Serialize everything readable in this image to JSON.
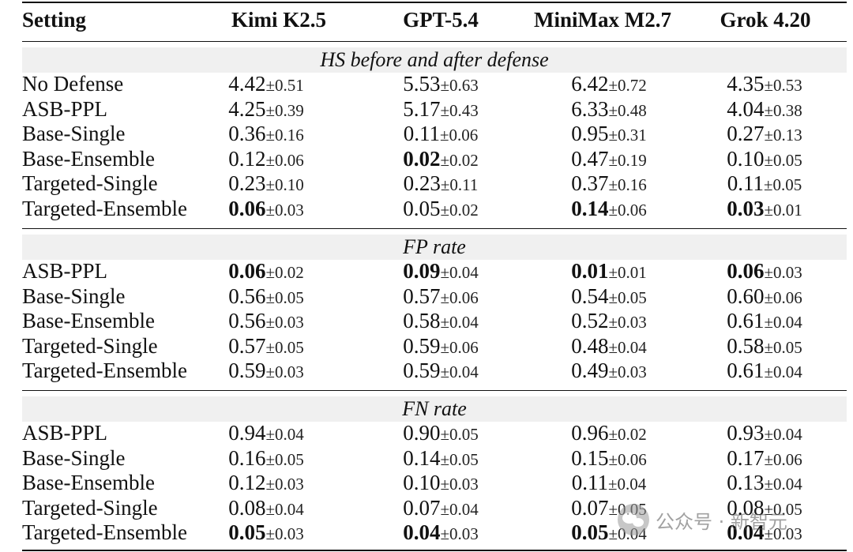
{
  "header": {
    "setting": "Setting",
    "models": [
      "Kimi K2.5",
      "GPT-5.4",
      "MiniMax M2.7",
      "Grok 4.20"
    ]
  },
  "sections": [
    {
      "title": "HS before and after defense",
      "rows": [
        {
          "label": "No Defense",
          "cells": [
            {
              "mean": "4.42",
              "std": "±0.51",
              "bold": false
            },
            {
              "mean": "5.53",
              "std": "±0.63",
              "bold": false
            },
            {
              "mean": "6.42",
              "std": "±0.72",
              "bold": false
            },
            {
              "mean": "4.35",
              "std": "±0.53",
              "bold": false
            }
          ]
        },
        {
          "label": "ASB-PPL",
          "cells": [
            {
              "mean": "4.25",
              "std": "±0.39",
              "bold": false
            },
            {
              "mean": "5.17",
              "std": "±0.43",
              "bold": false
            },
            {
              "mean": "6.33",
              "std": "±0.48",
              "bold": false
            },
            {
              "mean": "4.04",
              "std": "±0.38",
              "bold": false
            }
          ]
        },
        {
          "label": "Base-Single",
          "cells": [
            {
              "mean": "0.36",
              "std": "±0.16",
              "bold": false
            },
            {
              "mean": "0.11",
              "std": "±0.06",
              "bold": false
            },
            {
              "mean": "0.95",
              "std": "±0.31",
              "bold": false
            },
            {
              "mean": "0.27",
              "std": "±0.13",
              "bold": false
            }
          ]
        },
        {
          "label": "Base-Ensemble",
          "cells": [
            {
              "mean": "0.12",
              "std": "±0.06",
              "bold": false
            },
            {
              "mean": "0.02",
              "std": "±0.02",
              "bold": true
            },
            {
              "mean": "0.47",
              "std": "±0.19",
              "bold": false
            },
            {
              "mean": "0.10",
              "std": "±0.05",
              "bold": false
            }
          ]
        },
        {
          "label": "Targeted-Single",
          "cells": [
            {
              "mean": "0.23",
              "std": "±0.10",
              "bold": false
            },
            {
              "mean": "0.23",
              "std": "±0.11",
              "bold": false
            },
            {
              "mean": "0.37",
              "std": "±0.16",
              "bold": false
            },
            {
              "mean": "0.11",
              "std": "±0.05",
              "bold": false
            }
          ]
        },
        {
          "label": "Targeted-Ensemble",
          "cells": [
            {
              "mean": "0.06",
              "std": "±0.03",
              "bold": true
            },
            {
              "mean": "0.05",
              "std": "±0.02",
              "bold": false
            },
            {
              "mean": "0.14",
              "std": "±0.06",
              "bold": true
            },
            {
              "mean": "0.03",
              "std": "±0.01",
              "bold": true
            }
          ]
        }
      ]
    },
    {
      "title": "FP rate",
      "rows": [
        {
          "label": "ASB-PPL",
          "cells": [
            {
              "mean": "0.06",
              "std": "±0.02",
              "bold": true
            },
            {
              "mean": "0.09",
              "std": "±0.04",
              "bold": true
            },
            {
              "mean": "0.01",
              "std": "±0.01",
              "bold": true
            },
            {
              "mean": "0.06",
              "std": "±0.03",
              "bold": true
            }
          ]
        },
        {
          "label": "Base-Single",
          "cells": [
            {
              "mean": "0.56",
              "std": "±0.05",
              "bold": false
            },
            {
              "mean": "0.57",
              "std": "±0.06",
              "bold": false
            },
            {
              "mean": "0.54",
              "std": "±0.05",
              "bold": false
            },
            {
              "mean": "0.60",
              "std": "±0.06",
              "bold": false
            }
          ]
        },
        {
          "label": "Base-Ensemble",
          "cells": [
            {
              "mean": "0.56",
              "std": "±0.03",
              "bold": false
            },
            {
              "mean": "0.58",
              "std": "±0.04",
              "bold": false
            },
            {
              "mean": "0.52",
              "std": "±0.03",
              "bold": false
            },
            {
              "mean": "0.61",
              "std": "±0.04",
              "bold": false
            }
          ]
        },
        {
          "label": "Targeted-Single",
          "cells": [
            {
              "mean": "0.57",
              "std": "±0.05",
              "bold": false
            },
            {
              "mean": "0.59",
              "std": "±0.06",
              "bold": false
            },
            {
              "mean": "0.48",
              "std": "±0.04",
              "bold": false
            },
            {
              "mean": "0.58",
              "std": "±0.05",
              "bold": false
            }
          ]
        },
        {
          "label": "Targeted-Ensemble",
          "cells": [
            {
              "mean": "0.59",
              "std": "±0.03",
              "bold": false
            },
            {
              "mean": "0.59",
              "std": "±0.04",
              "bold": false
            },
            {
              "mean": "0.49",
              "std": "±0.03",
              "bold": false
            },
            {
              "mean": "0.61",
              "std": "±0.04",
              "bold": false
            }
          ]
        }
      ]
    },
    {
      "title": "FN rate",
      "rows": [
        {
          "label": "ASB-PPL",
          "cells": [
            {
              "mean": "0.94",
              "std": "±0.04",
              "bold": false
            },
            {
              "mean": "0.90",
              "std": "±0.05",
              "bold": false
            },
            {
              "mean": "0.96",
              "std": "±0.02",
              "bold": false
            },
            {
              "mean": "0.93",
              "std": "±0.04",
              "bold": false
            }
          ]
        },
        {
          "label": "Base-Single",
          "cells": [
            {
              "mean": "0.16",
              "std": "±0.05",
              "bold": false
            },
            {
              "mean": "0.14",
              "std": "±0.05",
              "bold": false
            },
            {
              "mean": "0.15",
              "std": "±0.06",
              "bold": false
            },
            {
              "mean": "0.17",
              "std": "±0.06",
              "bold": false
            }
          ]
        },
        {
          "label": "Base-Ensemble",
          "cells": [
            {
              "mean": "0.12",
              "std": "±0.03",
              "bold": false
            },
            {
              "mean": "0.10",
              "std": "±0.03",
              "bold": false
            },
            {
              "mean": "0.11",
              "std": "±0.04",
              "bold": false
            },
            {
              "mean": "0.13",
              "std": "±0.04",
              "bold": false
            }
          ]
        },
        {
          "label": "Targeted-Single",
          "cells": [
            {
              "mean": "0.08",
              "std": "±0.04",
              "bold": false
            },
            {
              "mean": "0.07",
              "std": "±0.04",
              "bold": false
            },
            {
              "mean": "0.07",
              "std": "±0.05",
              "bold": false
            },
            {
              "mean": "0.08",
              "std": "±0.05",
              "bold": false
            }
          ]
        },
        {
          "label": "Targeted-Ensemble",
          "cells": [
            {
              "mean": "0.05",
              "std": "±0.03",
              "bold": true
            },
            {
              "mean": "0.04",
              "std": "±0.03",
              "bold": true
            },
            {
              "mean": "0.05",
              "std": "±0.04",
              "bold": true
            },
            {
              "mean": "0.04",
              "std": "±0.03",
              "bold": true
            }
          ]
        }
      ]
    }
  ],
  "watermark": {
    "text": "公众号 · 新智元",
    "icon": "wechat-icon"
  }
}
